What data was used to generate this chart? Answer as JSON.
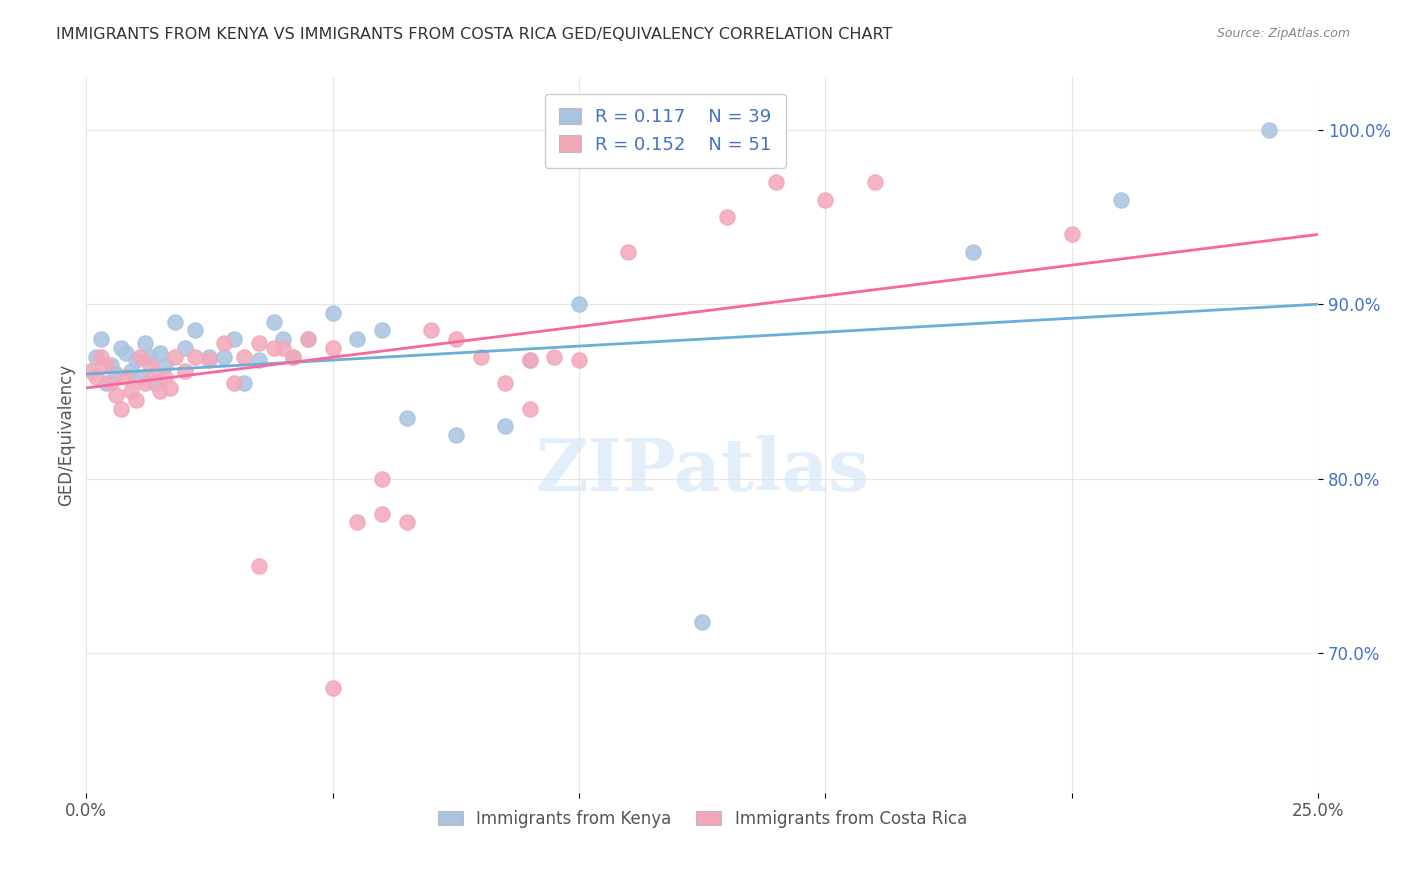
{
  "title": "IMMIGRANTS FROM KENYA VS IMMIGRANTS FROM COSTA RICA GED/EQUIVALENCY CORRELATION CHART",
  "source": "Source: ZipAtlas.com",
  "ylabel": "GED/Equivalency",
  "ytick_labels": [
    "70.0%",
    "80.0%",
    "90.0%",
    "100.0%"
  ],
  "ytick_values": [
    0.7,
    0.8,
    0.9,
    1.0
  ],
  "xlim": [
    0.0,
    0.25
  ],
  "ylim": [
    0.62,
    1.03
  ],
  "watermark": "ZIPatlas",
  "legend_r1": "R = 0.117",
  "legend_n1": "N = 39",
  "legend_r2": "R = 0.152",
  "legend_n2": "N = 51",
  "kenya_color": "#a8c4e0",
  "costa_rica_color": "#f4a7b9",
  "kenya_line_color": "#6baed6",
  "costa_rica_line_color": "#f768a1",
  "kenya_scatter_x": [
    0.002,
    0.003,
    0.004,
    0.005,
    0.006,
    0.007,
    0.008,
    0.009,
    0.01,
    0.011,
    0.012,
    0.013,
    0.014,
    0.015,
    0.016,
    0.018,
    0.02,
    0.022,
    0.025,
    0.028,
    0.03,
    0.032,
    0.035,
    0.038,
    0.04,
    0.042,
    0.045,
    0.05,
    0.055,
    0.06,
    0.065,
    0.075,
    0.085,
    0.09,
    0.1,
    0.18,
    0.21,
    0.24,
    0.125
  ],
  "kenya_scatter_y": [
    0.87,
    0.88,
    0.855,
    0.865,
    0.86,
    0.875,
    0.872,
    0.862,
    0.868,
    0.858,
    0.878,
    0.87,
    0.855,
    0.872,
    0.865,
    0.89,
    0.875,
    0.885,
    0.87,
    0.87,
    0.88,
    0.855,
    0.868,
    0.89,
    0.88,
    0.87,
    0.88,
    0.895,
    0.88,
    0.885,
    0.835,
    0.825,
    0.83,
    0.868,
    0.9,
    0.93,
    0.96,
    1.0,
    0.718
  ],
  "costa_rica_scatter_x": [
    0.001,
    0.002,
    0.003,
    0.004,
    0.005,
    0.006,
    0.007,
    0.008,
    0.009,
    0.01,
    0.011,
    0.012,
    0.013,
    0.014,
    0.015,
    0.016,
    0.017,
    0.018,
    0.02,
    0.022,
    0.025,
    0.028,
    0.03,
    0.032,
    0.035,
    0.038,
    0.04,
    0.042,
    0.045,
    0.05,
    0.055,
    0.06,
    0.065,
    0.07,
    0.075,
    0.08,
    0.085,
    0.09,
    0.095,
    0.1,
    0.11,
    0.12,
    0.13,
    0.14,
    0.15,
    0.16,
    0.035,
    0.05,
    0.09,
    0.2,
    0.06
  ],
  "costa_rica_scatter_y": [
    0.862,
    0.858,
    0.87,
    0.865,
    0.855,
    0.848,
    0.84,
    0.858,
    0.85,
    0.845,
    0.87,
    0.855,
    0.865,
    0.86,
    0.85,
    0.858,
    0.852,
    0.87,
    0.862,
    0.87,
    0.868,
    0.878,
    0.855,
    0.87,
    0.878,
    0.875,
    0.875,
    0.87,
    0.88,
    0.875,
    0.775,
    0.8,
    0.775,
    0.885,
    0.88,
    0.87,
    0.855,
    0.868,
    0.87,
    0.868,
    0.93,
    0.985,
    0.95,
    0.97,
    0.96,
    0.97,
    0.75,
    0.68,
    0.84,
    0.94,
    0.78
  ],
  "kenya_trend_x": [
    0.0,
    0.25
  ],
  "kenya_trend_y": [
    0.86,
    0.9
  ],
  "costa_rica_trend_x": [
    0.0,
    0.25
  ],
  "costa_rica_trend_y": [
    0.852,
    0.94
  ],
  "background_color": "#ffffff",
  "grid_color": "#dddddd",
  "title_color": "#333333",
  "axis_label_color": "#555555",
  "value_color": "#4472c4"
}
